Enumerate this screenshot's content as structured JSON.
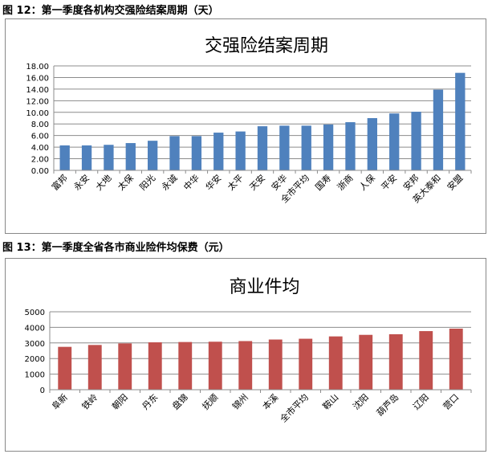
{
  "captions": {
    "fig12": "图 12：第一季度各机构交强险结案周期（天）",
    "fig13": "图 13：第一季度全省各市商业险件均保费（元）"
  },
  "colors": {
    "chart1_bar": "#4F81BD",
    "chart2_bar": "#C0504D",
    "gridline": "#8C8C8C",
    "axis": "#8C8C8C"
  },
  "chart_data": [
    {
      "type": "bar",
      "title": "交强险结案周期",
      "xlabel": "",
      "ylabel": "",
      "ylim": [
        0,
        18
      ],
      "ytick_step": 2,
      "ytick_decimals": 2,
      "grid": true,
      "categories": [
        "富邦",
        "永安",
        "大地",
        "太保",
        "阳光",
        "永诚",
        "中华",
        "华安",
        "太平",
        "天安",
        "安华",
        "全市平均",
        "国寿",
        "浙商",
        "人保",
        "平安",
        "安邦",
        "英大泰和",
        "安盟"
      ],
      "values": [
        4.3,
        4.3,
        4.4,
        4.7,
        5.1,
        5.9,
        5.9,
        6.5,
        6.7,
        7.6,
        7.7,
        7.7,
        7.9,
        8.3,
        9.0,
        9.8,
        10.1,
        13.9,
        16.8
      ]
    },
    {
      "type": "bar",
      "title": "商业件均",
      "xlabel": "",
      "ylabel": "",
      "ylim": [
        0,
        5000
      ],
      "ytick_step": 1000,
      "ytick_decimals": 0,
      "grid": true,
      "categories": [
        "阜新",
        "铁岭",
        "朝阳",
        "丹东",
        "盘锦",
        "抚顺",
        "锦州",
        "本溪",
        "全市平均",
        "鞍山",
        "沈阳",
        "葫芦岛",
        "辽阳",
        "营口"
      ],
      "values": [
        2750,
        2870,
        2970,
        3040,
        3060,
        3080,
        3120,
        3220,
        3270,
        3420,
        3520,
        3560,
        3760,
        3920
      ]
    }
  ]
}
